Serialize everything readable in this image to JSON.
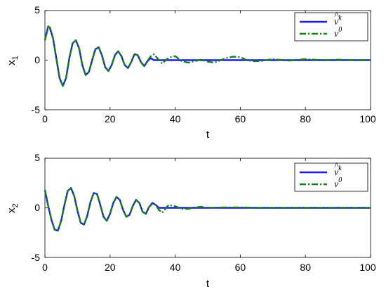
{
  "chart_data": [
    {
      "type": "line",
      "ylabel": "x",
      "ylabel_sub": "1",
      "xlabel": "t",
      "xlim": [
        0,
        100
      ],
      "ylim": [
        -5,
        5
      ],
      "x_ticks": [
        "0",
        "20",
        "40",
        "60",
        "80",
        "100"
      ],
      "y_ticks": [
        "5",
        "0",
        "-5"
      ],
      "legend_position": "top-right",
      "series": [
        {
          "name_base": "v",
          "name_accent": "^",
          "name_sup": "k",
          "color": "#1a1aff",
          "style": "solid",
          "x": [
            0,
            1,
            1.5,
            2.5,
            3.5,
            4.5,
            5.5,
            6.5,
            7.5,
            8.5,
            9.5,
            10.5,
            11.5,
            12.5,
            13.5,
            14.5,
            15.5,
            16.5,
            17.5,
            18.5,
            19.5,
            20.5,
            21.5,
            22.5,
            23.5,
            24.5,
            25.5,
            26.5,
            27.5,
            28.5,
            29.5,
            30.5,
            31.5,
            32.5,
            33.5,
            35,
            40,
            50,
            60,
            70,
            80,
            90,
            100
          ],
          "y": [
            2,
            3.4,
            3.3,
            2.2,
            0.2,
            -1.8,
            -2.6,
            -1.8,
            0.2,
            1.7,
            2.0,
            1.2,
            -0.5,
            -1.5,
            -1.2,
            0,
            1.1,
            1.3,
            0.5,
            -0.7,
            -1.1,
            -0.5,
            0.5,
            0.9,
            0.4,
            -0.5,
            -0.8,
            -0.2,
            0.6,
            0.5,
            -0.2,
            -0.6,
            -0.1,
            0.2,
            0,
            0,
            0,
            0,
            0,
            0,
            0,
            0,
            0
          ]
        },
        {
          "name_base": "v",
          "name_sup": "0",
          "color": "#138013",
          "style": "dashdot",
          "x": [
            0,
            1,
            1.5,
            2.5,
            3.5,
            4.5,
            5.5,
            6.5,
            7.5,
            8.5,
            9.5,
            10.5,
            11.5,
            12.5,
            13.5,
            14.5,
            15.5,
            16.5,
            17.5,
            18.5,
            19.5,
            20.5,
            21.5,
            22.5,
            23.5,
            24.5,
            25.5,
            26.5,
            27.5,
            28.5,
            29.5,
            30.5,
            31.5,
            32.5,
            33.5,
            34.5,
            36,
            38,
            40,
            42,
            44,
            46,
            48,
            50,
            52,
            54,
            56,
            58,
            60,
            62,
            64,
            66,
            68,
            70,
            75,
            80,
            85,
            90,
            95,
            100
          ],
          "y": [
            2,
            3.4,
            3.3,
            2.2,
            0.2,
            -1.8,
            -2.6,
            -1.8,
            0.2,
            1.7,
            2.0,
            1.2,
            -0.5,
            -1.5,
            -1.2,
            0,
            1.1,
            1.3,
            0.5,
            -0.7,
            -1.1,
            -0.5,
            0.5,
            0.9,
            0.4,
            -0.5,
            -0.8,
            -0.2,
            0.6,
            0.5,
            -0.2,
            -0.6,
            -0.1,
            0.4,
            0.6,
            0.2,
            -0.35,
            0.25,
            0.4,
            -0.1,
            -0.25,
            -0.1,
            0.05,
            -0.15,
            -0.25,
            0,
            0.25,
            0.35,
            0.3,
            0,
            -0.1,
            -0.1,
            0,
            0.1,
            -0.05,
            0.1,
            0,
            0.05,
            0,
            0
          ]
        }
      ]
    },
    {
      "type": "line",
      "ylabel": "x",
      "ylabel_sub": "2",
      "xlabel": "t",
      "xlim": [
        0,
        100
      ],
      "ylim": [
        -5,
        5
      ],
      "x_ticks": [
        "0",
        "20",
        "40",
        "60",
        "80",
        "100"
      ],
      "y_ticks": [
        "5",
        "0",
        "-5"
      ],
      "legend_position": "top-right",
      "series": [
        {
          "name_base": "v",
          "name_accent": "^",
          "name_sup": "k",
          "color": "#1a1aff",
          "style": "solid",
          "x": [
            0,
            1,
            2,
            3,
            4,
            5,
            6,
            7,
            8,
            9,
            10,
            11,
            12,
            13,
            14,
            15,
            16,
            17,
            18,
            19,
            20,
            21,
            22,
            23,
            24,
            25,
            26,
            27,
            28,
            29,
            30,
            31,
            32,
            33,
            34,
            35,
            40,
            50,
            60,
            70,
            80,
            90,
            100
          ],
          "y": [
            1.8,
            0.2,
            -1.2,
            -2.2,
            -2.3,
            -1.3,
            0.3,
            1.7,
            2.0,
            1.2,
            -0.3,
            -1.5,
            -1.7,
            -0.8,
            0.6,
            1.5,
            1.4,
            0.3,
            -0.9,
            -1.3,
            -0.6,
            0.5,
            1.1,
            0.8,
            -0.2,
            -0.9,
            -0.7,
            0.2,
            0.8,
            0.5,
            -0.4,
            -0.6,
            0.1,
            0.5,
            0.3,
            0,
            0,
            0,
            0,
            0,
            0,
            0,
            0
          ]
        },
        {
          "name_base": "v",
          "name_sup": "0",
          "color": "#138013",
          "style": "dashdot",
          "x": [
            0,
            1,
            2,
            3,
            4,
            5,
            6,
            7,
            8,
            9,
            10,
            11,
            12,
            13,
            14,
            15,
            16,
            17,
            18,
            19,
            20,
            21,
            22,
            23,
            24,
            25,
            26,
            27,
            28,
            29,
            30,
            31,
            32,
            33,
            34,
            35,
            36,
            37,
            38,
            40,
            42,
            44,
            46,
            48,
            50,
            55,
            60,
            65,
            70,
            80,
            90,
            100
          ],
          "y": [
            1.8,
            0.2,
            -1.2,
            -2.2,
            -2.3,
            -1.3,
            0.3,
            1.7,
            2.0,
            1.2,
            -0.3,
            -1.5,
            -1.7,
            -0.8,
            0.6,
            1.5,
            1.4,
            0.3,
            -0.9,
            -1.3,
            -0.6,
            0.5,
            1.1,
            0.8,
            -0.2,
            -0.9,
            -0.7,
            0.2,
            0.8,
            0.5,
            -0.4,
            -0.6,
            0.1,
            0.4,
            0.3,
            -0.2,
            -0.5,
            -0.1,
            0.3,
            0.15,
            -0.1,
            -0.1,
            0.05,
            0.1,
            0,
            0.05,
            0.05,
            0,
            0,
            0,
            0,
            0
          ]
        }
      ]
    }
  ]
}
